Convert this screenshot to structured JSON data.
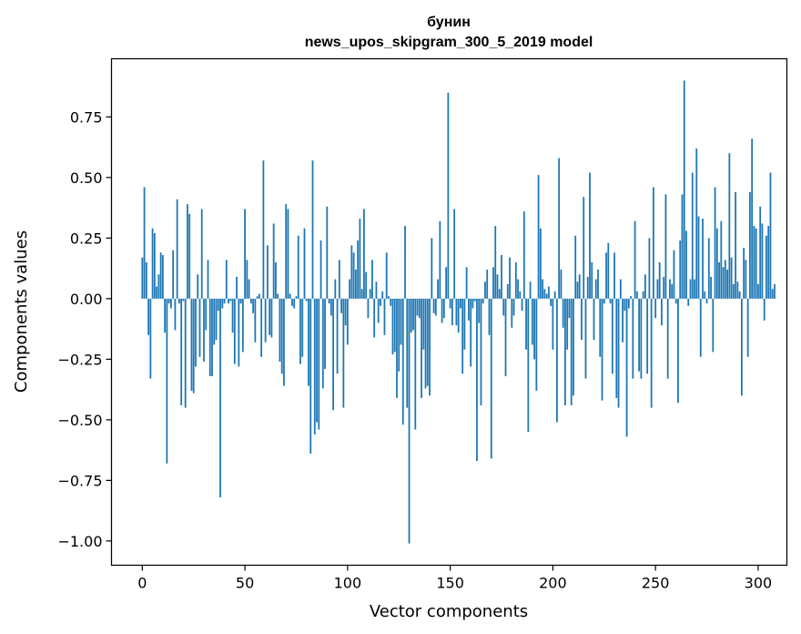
{
  "chart_data": {
    "type": "bar",
    "title_line1": "бунин",
    "title_line2": "news_upos_skipgram_300_5_2019 model",
    "xlabel": "Vector components",
    "ylabel": "Components values",
    "xlim": [
      -15,
      314
    ],
    "ylim": [
      -1.1,
      0.99
    ],
    "xticks": [
      0,
      50,
      100,
      150,
      200,
      250,
      300
    ],
    "xtick_labels": [
      "0",
      "50",
      "100",
      "150",
      "200",
      "250",
      "300"
    ],
    "yticks": [
      0.75,
      0.5,
      0.25,
      0.0,
      -0.25,
      -0.5,
      -0.75,
      -1.0
    ],
    "ytick_labels": [
      "0.75",
      "0.50",
      "0.25",
      "0.00",
      "−0.25",
      "−0.50",
      "−0.75",
      "−1.00"
    ],
    "bar_color": "#1f77b4",
    "values": [
      0.17,
      0.46,
      0.15,
      -0.15,
      -0.33,
      0.29,
      0.27,
      0.05,
      0.1,
      0.19,
      0.18,
      -0.14,
      -0.68,
      -0.02,
      -0.04,
      0.2,
      -0.13,
      0.41,
      -0.02,
      -0.44,
      -0.01,
      -0.45,
      0.39,
      0.35,
      -0.38,
      -0.39,
      -0.28,
      0.1,
      -0.24,
      0.37,
      -0.26,
      -0.13,
      0.16,
      -0.32,
      -0.32,
      -0.19,
      -0.17,
      -0.05,
      -0.82,
      -0.04,
      -0.02,
      0.16,
      -0.02,
      -0.01,
      -0.14,
      -0.27,
      0.09,
      -0.28,
      -0.02,
      -0.22,
      0.37,
      0.16,
      0.08,
      -0.02,
      -0.06,
      -0.18,
      0.01,
      0.02,
      -0.24,
      0.57,
      -0.18,
      0.22,
      -0.15,
      -0.16,
      0.31,
      0.15,
      0.02,
      -0.26,
      -0.31,
      -0.36,
      0.39,
      0.37,
      0.02,
      -0.03,
      -0.04,
      0.01,
      0.26,
      -0.27,
      -0.24,
      0.29,
      -0.01,
      -0.36,
      -0.64,
      0.57,
      -0.56,
      -0.51,
      -0.54,
      0.24,
      -0.37,
      -0.29,
      0.38,
      -0.02,
      -0.07,
      -0.46,
      0.08,
      -0.31,
      0.16,
      -0.06,
      -0.45,
      -0.11,
      -0.19,
      0.08,
      0.22,
      0.19,
      0.12,
      0.24,
      0.33,
      0.04,
      0.37,
      0.11,
      -0.08,
      0.04,
      0.16,
      -0.16,
      0.07,
      -0.1,
      -0.03,
      0.03,
      -0.15,
      0.19,
      0.01,
      -0.03,
      -0.23,
      -0.22,
      -0.41,
      -0.3,
      -0.19,
      -0.52,
      0.3,
      -0.45,
      -1.01,
      -0.14,
      -0.13,
      -0.54,
      -0.07,
      -0.08,
      -0.41,
      -0.21,
      -0.37,
      -0.36,
      -0.4,
      0.25,
      -0.06,
      -0.07,
      0.08,
      0.32,
      -0.1,
      -0.08,
      0.13,
      0.85,
      -0.04,
      -0.11,
      0.37,
      -0.11,
      -0.14,
      -0.04,
      -0.31,
      -0.21,
      0.13,
      -0.09,
      -0.28,
      -0.04,
      -0.01,
      -0.67,
      -0.1,
      -0.44,
      -0.02,
      0.07,
      0.12,
      -0.15,
      -0.66,
      0.13,
      0.3,
      0.1,
      0.04,
      0.18,
      -0.07,
      -0.32,
      0.06,
      0.17,
      -0.12,
      -0.07,
      0.15,
      0.08,
      0.03,
      -0.05,
      0.36,
      -0.21,
      -0.55,
      0.07,
      -0.19,
      -0.25,
      -0.38,
      0.51,
      0.29,
      0.08,
      0.04,
      0.02,
      0.05,
      -0.03,
      -0.21,
      0.03,
      -0.51,
      0.58,
      0.12,
      -0.12,
      -0.44,
      -0.21,
      -0.08,
      -0.44,
      -0.4,
      0.26,
      0.07,
      0.1,
      -0.17,
      0.42,
      -0.33,
      0.09,
      0.52,
      0.15,
      -0.17,
      0.08,
      0.12,
      -0.24,
      -0.42,
      -0.02,
      0.19,
      0.23,
      -0.02,
      -0.31,
      0.19,
      -0.41,
      -0.45,
      0.08,
      -0.18,
      -0.05,
      -0.57,
      -0.04,
      0.01,
      -0.33,
      0.32,
      0.03,
      -0.3,
      -0.33,
      0.03,
      0.1,
      -0.31,
      0.25,
      -0.45,
      0.46,
      -0.08,
      0.08,
      0.15,
      -0.11,
      0.09,
      0.43,
      -0.33,
      0.08,
      0.06,
      0.2,
      -0.02,
      -0.43,
      0.24,
      0.43,
      0.9,
      0.28,
      -0.03,
      0.08,
      0.52,
      0.08,
      0.62,
      0.34,
      -0.24,
      0.33,
      0.03,
      -0.02,
      0.25,
      0.09,
      -0.22,
      0.46,
      0.29,
      0.15,
      0.32,
      0.13,
      0.16,
      0.12,
      0.6,
      0.17,
      0.06,
      0.44,
      0.07,
      0.03,
      -0.4,
      0.21,
      0.16,
      -0.24,
      0.44,
      0.66,
      0.3,
      0.29,
      0.06,
      0.38,
      0.31,
      -0.09,
      0.26,
      0.3,
      0.52,
      0.04,
      0.06
    ]
  }
}
